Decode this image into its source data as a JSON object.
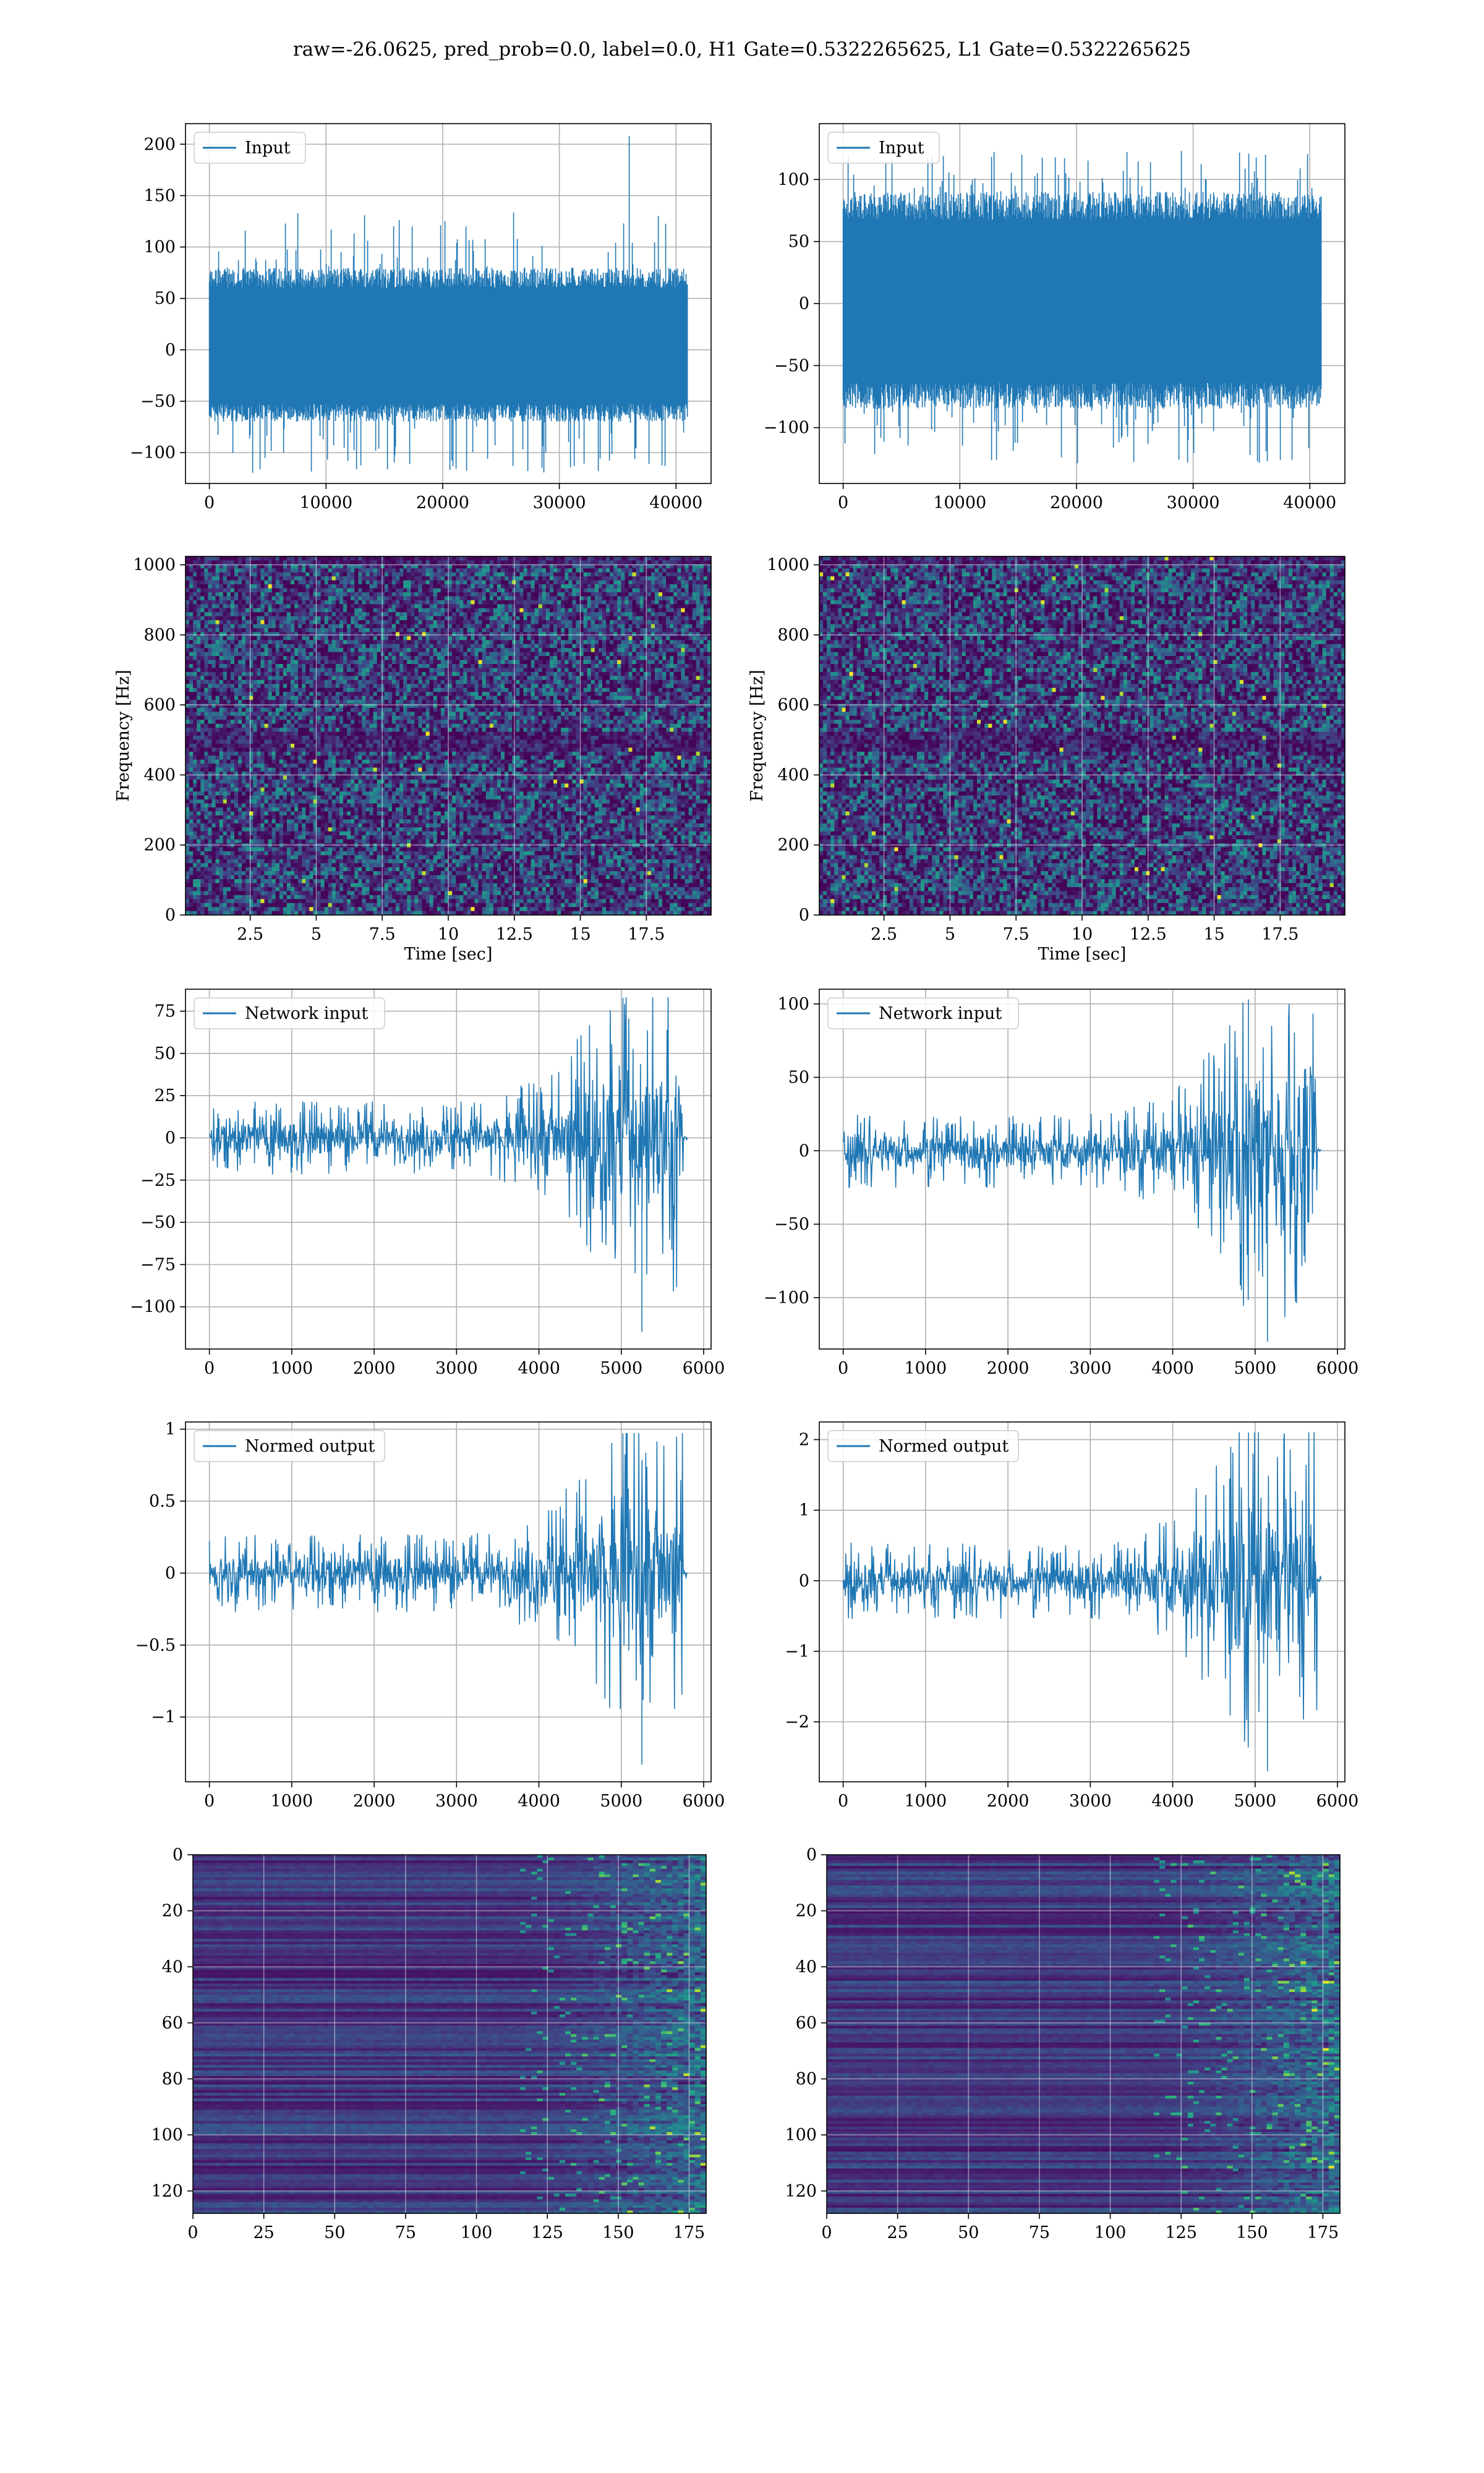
{
  "figure": {
    "title": "raw=-26.0625, pred_prob=0.0, label=0.0, H1 Gate=0.5322265625, L1 Gate=0.5322265625"
  },
  "colors": {
    "line": "#1f77b4",
    "grid": "#b0b0b0",
    "viridis": [
      "#440154",
      "#472c7a",
      "#3b518b",
      "#2c718e",
      "#21908d",
      "#27ad81",
      "#5cc863",
      "#aadc32",
      "#fde725"
    ]
  },
  "chart_data": [
    {
      "id": "h1-input",
      "type": "line",
      "legend": "Input",
      "legend_position": "upper-left",
      "xlim": [
        -2048,
        43008
      ],
      "ylim": [
        -130,
        220
      ],
      "xticks": [
        0,
        10000,
        20000,
        30000,
        40000
      ],
      "yticks": [
        -100,
        -50,
        0,
        50,
        100,
        150,
        200
      ],
      "series": [
        {
          "name": "Input",
          "n": 40960,
          "band": [
            -70,
            80
          ],
          "extremes": [
            -120,
            135
          ],
          "spike": {
            "x": 36000,
            "y": 208
          }
        }
      ],
      "grid": true
    },
    {
      "id": "l1-input",
      "type": "line",
      "legend": "Input",
      "legend_position": "upper-left",
      "xlim": [
        -2048,
        43008
      ],
      "ylim": [
        -145,
        145
      ],
      "xticks": [
        0,
        10000,
        20000,
        30000,
        40000
      ],
      "yticks": [
        -100,
        -50,
        0,
        50,
        100
      ],
      "series": [
        {
          "name": "Input",
          "n": 40960,
          "band": [
            -85,
            90
          ],
          "extremes": [
            -130,
            123
          ]
        }
      ],
      "grid": true
    },
    {
      "id": "h1-spectrogram",
      "type": "heatmap",
      "colormap": "viridis",
      "xlim": [
        0.05,
        19.95
      ],
      "ylim": [
        0,
        1024
      ],
      "xticks": [
        2.5,
        5.0,
        7.5,
        10.0,
        12.5,
        15.0,
        17.5
      ],
      "yticks": [
        0,
        200,
        400,
        600,
        800,
        1000
      ],
      "xlabel": "Time [sec]",
      "ylabel": "Frequency [Hz]",
      "grid": true
    },
    {
      "id": "l1-spectrogram",
      "type": "heatmap",
      "colormap": "viridis",
      "xlim": [
        0.05,
        19.95
      ],
      "ylim": [
        0,
        1024
      ],
      "xticks": [
        2.5,
        5.0,
        7.5,
        10.0,
        12.5,
        15.0,
        17.5
      ],
      "yticks": [
        0,
        200,
        400,
        600,
        800,
        1000
      ],
      "xlabel": "Time [sec]",
      "ylabel": "Frequency [Hz]",
      "grid": true
    },
    {
      "id": "h1-network-input",
      "type": "line",
      "legend": "Network input",
      "legend_position": "upper-left",
      "xlim": [
        -290,
        6090
      ],
      "ylim": [
        -125,
        88
      ],
      "xticks": [
        0,
        1000,
        2000,
        3000,
        4000,
        5000,
        6000
      ],
      "yticks": [
        -100,
        -75,
        -50,
        -25,
        0,
        25,
        50,
        75
      ],
      "series": [
        {
          "name": "Network input",
          "n": 5800,
          "base_amp": 12,
          "rise_start": 3000,
          "rise_peak": 5000,
          "peak_amp": 75,
          "end": 5750,
          "min": -115,
          "max": 83
        }
      ],
      "grid": true
    },
    {
      "id": "l1-network-input",
      "type": "line",
      "legend": "Network input",
      "legend_position": "upper-left",
      "xlim": [
        -290,
        6090
      ],
      "ylim": [
        -135,
        110
      ],
      "xticks": [
        0,
        1000,
        2000,
        3000,
        4000,
        5000,
        6000
      ],
      "yticks": [
        -100,
        -50,
        0,
        50,
        100
      ],
      "series": [
        {
          "name": "Network input",
          "n": 5800,
          "base_amp": 14,
          "rise_start": 3000,
          "rise_peak": 4900,
          "peak_amp": 90,
          "end": 5750,
          "min": -130,
          "max": 103
        }
      ],
      "grid": true
    },
    {
      "id": "h1-normed-output",
      "type": "line",
      "legend": "Normed output",
      "legend_position": "upper-left",
      "xlim": [
        -290,
        6090
      ],
      "ylim": [
        -1.45,
        1.05
      ],
      "xticks": [
        0,
        1000,
        2000,
        3000,
        4000,
        5000,
        6000
      ],
      "yticks": [
        -1.0,
        -0.5,
        0.0,
        0.5,
        1.0
      ],
      "series": [
        {
          "name": "Normed output",
          "n": 5800,
          "base_amp": 0.15,
          "rise_start": 3000,
          "rise_peak": 5000,
          "peak_amp": 0.85,
          "end": 5750,
          "min": -1.33,
          "max": 0.97
        }
      ],
      "grid": true
    },
    {
      "id": "l1-normed-output",
      "type": "line",
      "legend": "Normed output",
      "legend_position": "upper-left",
      "xlim": [
        -290,
        6090
      ],
      "ylim": [
        -2.85,
        2.25
      ],
      "xticks": [
        0,
        1000,
        2000,
        3000,
        4000,
        5000,
        6000
      ],
      "yticks": [
        -2,
        -1,
        0,
        1,
        2
      ],
      "series": [
        {
          "name": "Normed output",
          "n": 5800,
          "base_amp": 0.3,
          "rise_start": 3000,
          "rise_peak": 4900,
          "peak_amp": 1.9,
          "end": 5750,
          "min": -2.7,
          "max": 2.1
        }
      ],
      "grid": true
    },
    {
      "id": "h1-feature-map",
      "type": "heatmap",
      "colormap": "viridis",
      "xlim": [
        0,
        181
      ],
      "ylim": [
        128,
        0
      ],
      "xticks": [
        0,
        25,
        50,
        75,
        100,
        125,
        150,
        175
      ],
      "yticks": [
        0,
        20,
        40,
        60,
        80,
        100,
        120
      ],
      "grid": true
    },
    {
      "id": "l1-feature-map",
      "type": "heatmap",
      "colormap": "viridis",
      "xlim": [
        0,
        181
      ],
      "ylim": [
        128,
        0
      ],
      "xticks": [
        0,
        25,
        50,
        75,
        100,
        125,
        150,
        175
      ],
      "yticks": [
        0,
        20,
        40,
        60,
        80,
        100,
        120
      ],
      "grid": true
    }
  ]
}
